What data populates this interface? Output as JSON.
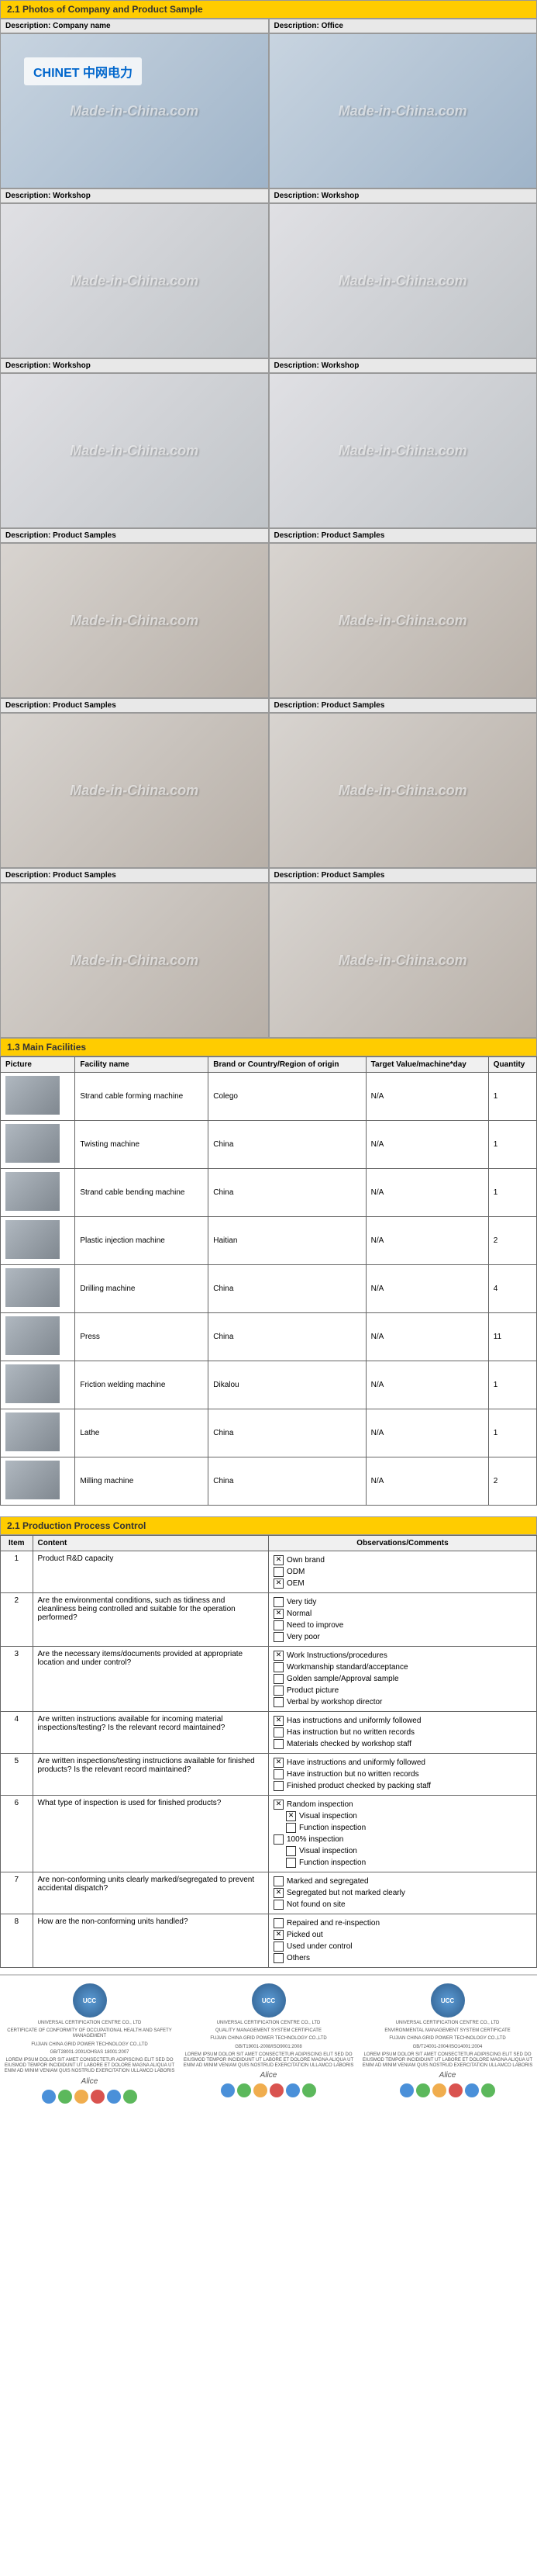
{
  "section1": {
    "title": "2.1 Photos of Company and Product Sample",
    "watermark": "Made-in-China.com",
    "logo": "CHINET 中网电力",
    "photos": [
      {
        "label": "Description: Company name",
        "type": "office",
        "hasLogo": true
      },
      {
        "label": "Description: Office",
        "type": "office"
      },
      {
        "label": "Description: Workshop",
        "type": "workshop"
      },
      {
        "label": "Description: Workshop",
        "type": "workshop"
      },
      {
        "label": "Description: Workshop",
        "type": "workshop"
      },
      {
        "label": "Description: Workshop",
        "type": "workshop"
      },
      {
        "label": "Description: Product Samples",
        "type": "samples"
      },
      {
        "label": "Description: Product Samples",
        "type": "samples"
      },
      {
        "label": "Description: Product Samples",
        "type": "samples"
      },
      {
        "label": "Description: Product Samples",
        "type": "samples"
      },
      {
        "label": "Description: Product Samples",
        "type": "samples"
      },
      {
        "label": "Description: Product Samples",
        "type": "samples"
      }
    ]
  },
  "section2": {
    "title": "1.3 Main Facilities",
    "headers": [
      "Picture",
      "Facility name",
      "Brand or Country/Region of origin",
      "Target Value/machine*day",
      "Quantity"
    ],
    "rows": [
      {
        "name": "Strand cable forming machine",
        "brand": "Colego",
        "target": "N/A",
        "qty": "1"
      },
      {
        "name": "Twisting machine",
        "brand": "China",
        "target": "N/A",
        "qty": "1"
      },
      {
        "name": "Strand cable bending machine",
        "brand": "China",
        "target": "N/A",
        "qty": "1"
      },
      {
        "name": "Plastic injection machine",
        "brand": "Haitian",
        "target": "N/A",
        "qty": "2"
      },
      {
        "name": "Drilling machine",
        "brand": "China",
        "target": "N/A",
        "qty": "4"
      },
      {
        "name": "Press",
        "brand": "China",
        "target": "N/A",
        "qty": "11"
      },
      {
        "name": "Friction welding machine",
        "brand": "Dikalou",
        "target": "N/A",
        "qty": "1"
      },
      {
        "name": "Lathe",
        "brand": "China",
        "target": "N/A",
        "qty": "1"
      },
      {
        "name": "Milling machine",
        "brand": "China",
        "target": "N/A",
        "qty": "2"
      }
    ]
  },
  "section3": {
    "title": "2.1 Production Process Control",
    "headers": [
      "Item",
      "Content",
      "Observations/Comments"
    ],
    "rows": [
      {
        "item": "1",
        "content": "Product R&D capacity",
        "opts": [
          {
            "c": true,
            "t": "Own brand"
          },
          {
            "c": false,
            "t": "ODM"
          },
          {
            "c": true,
            "t": "OEM"
          }
        ]
      },
      {
        "item": "2",
        "content": "Are the environmental conditions, such as tidiness and cleanliness being controlled and suitable for the operation performed?",
        "opts": [
          {
            "c": false,
            "t": "Very tidy"
          },
          {
            "c": true,
            "t": "Normal"
          },
          {
            "c": false,
            "t": "Need to improve"
          },
          {
            "c": false,
            "t": "Very poor"
          }
        ]
      },
      {
        "item": "3",
        "content": "Are the necessary items/documents provided at appropriate location and under control?",
        "opts": [
          {
            "c": true,
            "t": "Work Instructions/procedures"
          },
          {
            "c": false,
            "t": "Workmanship standard/acceptance"
          },
          {
            "c": false,
            "t": "Golden sample/Approval sample"
          },
          {
            "c": false,
            "t": "Product picture"
          },
          {
            "c": false,
            "t": "Verbal by workshop director"
          }
        ]
      },
      {
        "item": "4",
        "content": "Are written instructions available for incoming material inspections/testing? Is the relevant record maintained?",
        "opts": [
          {
            "c": true,
            "t": "Has instructions and uniformly followed"
          },
          {
            "c": false,
            "t": "Has instruction but no written records"
          },
          {
            "c": false,
            "t": "Materials checked by workshop staff"
          }
        ]
      },
      {
        "item": "5",
        "content": "Are written inspections/testing instructions available for finished products? Is the relevant record maintained?",
        "opts": [
          {
            "c": true,
            "t": "Have instructions and uniformly followed"
          },
          {
            "c": false,
            "t": "Have instruction but no written records"
          },
          {
            "c": false,
            "t": "Finished product checked by packing staff"
          }
        ]
      },
      {
        "item": "6",
        "content": "What type of inspection is used for finished products?",
        "opts": [
          {
            "c": true,
            "t": "Random inspection"
          },
          {
            "c": true,
            "t": "Visual inspection",
            "indent": true
          },
          {
            "c": false,
            "t": "Function inspection",
            "indent": true
          },
          {
            "c": false,
            "t": "100% inspection"
          },
          {
            "c": false,
            "t": "Visual inspection",
            "indent": true
          },
          {
            "c": false,
            "t": "Function inspection",
            "indent": true
          }
        ]
      },
      {
        "item": "7",
        "content": "Are non-conforming units clearly marked/segregated to prevent accidental dispatch?",
        "opts": [
          {
            "c": false,
            "t": "Marked and segregated"
          },
          {
            "c": true,
            "t": "Segregated but not marked clearly"
          },
          {
            "c": false,
            "t": "Not found on site"
          }
        ]
      },
      {
        "item": "8",
        "content": "How are the non-conforming units handled?",
        "opts": [
          {
            "c": false,
            "t": "Repaired and re-inspection"
          },
          {
            "c": true,
            "t": "Picked out"
          },
          {
            "c": false,
            "t": "Used under control"
          },
          {
            "c": false,
            "t": "Others"
          }
        ]
      }
    ]
  },
  "certs": {
    "cols": [
      {
        "badge": "UCC",
        "title": "UNIVERSAL CERTIFICATION CENTRE CO., LTD",
        "subtitle": "CERTIFICATE OF CONFORMITY OF OCCUPATIONAL HEALTH AND SAFETY MANAGEMENT",
        "company": "FUJIAN CHINA GRID POWER TECHNOLOGY CO.,LTD",
        "standard": "GB/T28001-2001/OHSAS 18001:2007"
      },
      {
        "badge": "UCC",
        "title": "UNIVERSAL CERTIFICATION CENTRE CO., LTD",
        "subtitle": "QUALITY MANAGEMENT SYSTEM CERTIFICATE",
        "company": "FUJIAN CHINA GRID POWER TECHNOLOGY CO.,LTD",
        "standard": "GB/T19001-2008/ISO9001:2008"
      },
      {
        "badge": "UCC",
        "title": "UNIVERSAL CERTIFICATION CENTRE CO., LTD",
        "subtitle": "ENVIRONMENTAL MANAGEMENT SYSTEM CERTIFICATE",
        "company": "FUJIAN CHINA GRID POWER TECHNOLOGY CO.,LTD",
        "standard": "GB/T24001-2004/ISO14001:2004"
      }
    ],
    "body": "LOREM IPSUM DOLOR SIT AMET CONSECTETUR ADIPISCING ELIT SED DO EIUSMOD TEMPOR INCIDIDUNT UT LABORE ET DOLORE MAGNA ALIQUA UT ENIM AD MINIM VENIAM QUIS NOSTRUD EXERCITATION ULLAMCO LABORIS"
  }
}
